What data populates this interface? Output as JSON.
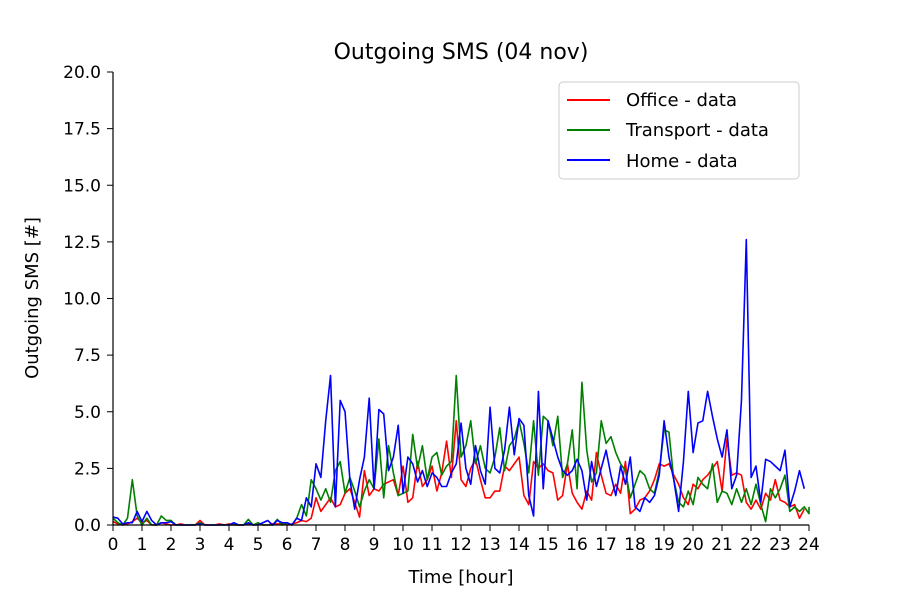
{
  "chart_data": {
    "type": "line",
    "title": "Outgoing SMS (04 nov)",
    "xlabel": "Time [hour]",
    "ylabel": "Outgoing SMS [#]",
    "xlim": [
      0,
      24
    ],
    "ylim": [
      0,
      20
    ],
    "x_ticks": [
      "0",
      "1",
      "2",
      "3",
      "4",
      "5",
      "6",
      "7",
      "8",
      "9",
      "10",
      "11",
      "12",
      "13",
      "14",
      "15",
      "16",
      "17",
      "18",
      "19",
      "20",
      "21",
      "22",
      "23",
      "24"
    ],
    "y_ticks": [
      "0.0",
      "2.5",
      "5.0",
      "7.5",
      "10.0",
      "12.5",
      "15.0",
      "17.5",
      "20.0"
    ],
    "grid": false,
    "legend_position": "top-right",
    "x_step": 0.1667,
    "series": [
      {
        "name": "Office - data",
        "color": "#ff0000",
        "values": [
          0.15,
          0.05,
          0.0,
          0.05,
          0.15,
          0.3,
          0.1,
          0.2,
          0.0,
          0.0,
          0.1,
          0.05,
          0.0,
          0.0,
          0.05,
          0.0,
          0.0,
          0.0,
          0.2,
          0.0,
          0.0,
          0.0,
          0.05,
          0.0,
          0.05,
          0.0,
          0.0,
          0.0,
          0.05,
          0.0,
          0.05,
          0.0,
          0.0,
          0.05,
          0.05,
          0.05,
          0.0,
          0.05,
          0.1,
          0.2,
          0.15,
          0.3,
          1.2,
          0.6,
          0.9,
          1.2,
          0.8,
          0.9,
          1.4,
          1.6,
          1.0,
          0.35,
          2.4,
          1.3,
          1.6,
          1.5,
          1.8,
          1.9,
          2.0,
          1.3,
          2.6,
          1.0,
          1.2,
          2.8,
          1.7,
          2.0,
          2.6,
          1.5,
          2.3,
          3.7,
          2.1,
          4.6,
          2.0,
          1.7,
          2.5,
          2.9,
          2.0,
          1.2,
          1.2,
          1.5,
          1.5,
          2.6,
          2.4,
          2.7,
          3.0,
          1.3,
          0.9,
          2.8,
          2.5,
          2.7,
          2.4,
          2.3,
          1.1,
          1.3,
          2.7,
          1.4,
          1.0,
          0.7,
          1.5,
          1.1,
          3.2,
          2.2,
          1.4,
          1.3,
          1.8,
          1.4,
          2.8,
          0.5,
          0.7,
          1.1,
          1.2,
          1.5,
          2.0,
          2.7,
          2.6,
          2.7,
          2.2,
          1.8,
          1.2,
          0.9,
          1.8,
          1.6,
          2.0,
          2.2,
          2.5,
          2.8,
          1.5,
          3.8,
          2.2,
          2.3,
          2.2,
          1.0,
          0.7,
          1.1,
          0.7,
          1.4,
          1.1,
          2.0,
          1.1,
          1.0,
          0.8,
          0.9,
          0.3,
          0.7
        ]
      },
      {
        "name": "Transport - data",
        "color": "#008000",
        "values": [
          0.3,
          0.1,
          0.0,
          0.3,
          2.0,
          0.4,
          0.0,
          0.3,
          0.0,
          0.0,
          0.4,
          0.2,
          0.2,
          0.0,
          0.0,
          0.0,
          0.0,
          0.0,
          0.1,
          0.0,
          0.0,
          0.0,
          0.0,
          0.0,
          0.0,
          0.0,
          0.0,
          0.0,
          0.25,
          0.0,
          0.1,
          0.0,
          0.0,
          0.0,
          0.25,
          0.0,
          0.1,
          0.0,
          0.3,
          0.9,
          0.4,
          2.0,
          1.6,
          1.1,
          1.6,
          1.0,
          2.4,
          2.8,
          1.4,
          2.1,
          1.5,
          0.8,
          1.5,
          2.0,
          1.6,
          3.8,
          1.2,
          3.5,
          2.3,
          1.3,
          1.4,
          1.5,
          4.0,
          2.5,
          3.5,
          2.0,
          3.0,
          3.2,
          2.2,
          2.6,
          2.8,
          6.6,
          3.0,
          3.5,
          4.6,
          2.7,
          3.5,
          2.5,
          2.3,
          3.0,
          4.3,
          2.4,
          3.5,
          3.8,
          4.6,
          3.6,
          2.3,
          4.6,
          2.2,
          4.8,
          4.6,
          3.5,
          4.8,
          2.1,
          2.7,
          4.2,
          1.6,
          6.3,
          3.3,
          1.9,
          2.3,
          4.6,
          3.6,
          3.9,
          3.2,
          2.7,
          2.4,
          1.2,
          1.8,
          2.4,
          2.2,
          1.6,
          1.4,
          2.4,
          4.2,
          4.1,
          2.0,
          1.0,
          0.8,
          1.5,
          0.9,
          2.1,
          1.8,
          1.6,
          2.7,
          1.0,
          1.5,
          1.4,
          0.9,
          1.6,
          1.0,
          1.6,
          0.9,
          1.8,
          0.9,
          0.15,
          1.6,
          1.2,
          1.6,
          2.2,
          0.6,
          0.8,
          0.6,
          0.8,
          0.5,
          0.8
        ]
      },
      {
        "name": "Home - data",
        "color": "#0000ff",
        "values": [
          0.35,
          0.3,
          0.05,
          0.1,
          0.1,
          0.6,
          0.15,
          0.6,
          0.2,
          0.0,
          0.1,
          0.1,
          0.15,
          0.0,
          0.0,
          0.0,
          0.0,
          0.0,
          0.05,
          0.0,
          0.0,
          0.0,
          0.0,
          0.0,
          0.0,
          0.1,
          0.0,
          0.0,
          0.1,
          0.0,
          0.0,
          0.1,
          0.2,
          0.0,
          0.2,
          0.1,
          0.1,
          0.0,
          0.3,
          0.2,
          1.2,
          0.8,
          2.7,
          2.1,
          4.6,
          6.6,
          0.8,
          5.5,
          5.0,
          2.0,
          0.7,
          2.0,
          3.0,
          5.6,
          1.6,
          5.1,
          4.9,
          2.4,
          3.0,
          4.4,
          1.4,
          3.0,
          2.7,
          1.9,
          2.4,
          1.7,
          2.3,
          2.1,
          1.7,
          1.7,
          2.3,
          2.7,
          4.5,
          2.5,
          1.8,
          3.5,
          2.4,
          1.8,
          5.2,
          2.5,
          2.3,
          3.3,
          5.2,
          3.1,
          4.7,
          4.4,
          1.3,
          0.4,
          5.9,
          1.6,
          4.6,
          3.8,
          3.0,
          2.4,
          2.2,
          2.4,
          2.9,
          2.4,
          1.1,
          2.8,
          1.7,
          2.5,
          3.3,
          2.2,
          1.3,
          2.6,
          1.8,
          3.0,
          0.8,
          0.6,
          1.2,
          1.0,
          1.3,
          2.2,
          4.6,
          3.0,
          2.0,
          0.6,
          2.8,
          5.9,
          3.2,
          4.5,
          4.6,
          5.9,
          4.8,
          3.8,
          3.0,
          4.2,
          1.6,
          2.2,
          5.5,
          12.6,
          2.1,
          2.6,
          1.0,
          2.9,
          2.8,
          2.6,
          2.4,
          3.3,
          0.8,
          1.5,
          2.4,
          1.6
        ]
      }
    ]
  }
}
